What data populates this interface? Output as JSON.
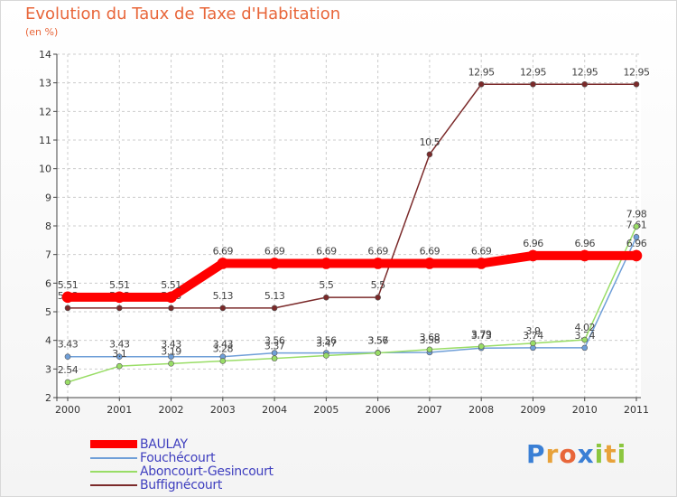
{
  "title": "Evolution du Taux de Taxe d'Habitation",
  "subtitle": "(en %)",
  "logo": {
    "text": "Proxiti",
    "letters": [
      {
        "ch": "P",
        "color": "#3a7fd5"
      },
      {
        "ch": "r",
        "color": "#e8a23a"
      },
      {
        "ch": "o",
        "color": "#e8663a"
      },
      {
        "ch": "x",
        "color": "#3a7fd5"
      },
      {
        "ch": "i",
        "color": "#8cc63f"
      },
      {
        "ch": "t",
        "color": "#e8a23a"
      },
      {
        "ch": "i",
        "color": "#8cc63f"
      }
    ]
  },
  "chart_data": {
    "type": "line",
    "title": "Evolution du Taux de Taxe d'Habitation",
    "ylabel": "(en %)",
    "xlabel": "",
    "x": [
      "2000",
      "2001",
      "2002",
      "2003",
      "2004",
      "2005",
      "2006",
      "2007",
      "2008",
      "2009",
      "2010",
      "2011"
    ],
    "ylim": [
      2,
      14
    ],
    "yticks": [
      "2",
      "3",
      "4",
      "5",
      "6",
      "7",
      "8",
      "9",
      "10",
      "11",
      "12",
      "13",
      "14"
    ],
    "grid": true,
    "legend": "bottom-left",
    "series": [
      {
        "name": "Buffignécourt",
        "color": "#7b2a2a",
        "values": [
          5.13,
          5.13,
          5.13,
          5.13,
          5.13,
          5.5,
          5.5,
          10.5,
          12.95,
          12.95,
          12.95,
          12.95
        ],
        "labels": [
          "5.13",
          "5.13",
          "5.13",
          "5.13",
          "5.13",
          "5.5",
          "5.5",
          "10.5",
          "12.95",
          "12.95",
          "12.95",
          "12.95"
        ]
      },
      {
        "name": "Fouchécourt",
        "color": "#6f9fd8",
        "values": [
          3.43,
          3.43,
          3.43,
          3.43,
          3.56,
          3.56,
          3.57,
          3.58,
          3.73,
          3.74,
          3.74,
          7.61
        ],
        "labels": [
          "3.43",
          "3.43",
          "3.43",
          "3.43",
          "3.56",
          "3.56",
          "3.57",
          "3.58",
          "3.73",
          "3.74",
          "3.74",
          "7.61"
        ]
      },
      {
        "name": "Aboncourt-Gesincourt",
        "color": "#99dd66",
        "values": [
          2.54,
          3.1,
          3.19,
          3.28,
          3.37,
          3.47,
          3.56,
          3.68,
          3.79,
          3.9,
          4.02,
          7.98
        ],
        "labels": [
          "2.54",
          "3.1",
          "3.19",
          "3.28",
          "3.37",
          "3.47",
          "3.56",
          "3.68",
          "3.79",
          "3.9",
          "4.02",
          "7.98"
        ]
      },
      {
        "name": "BAULAY",
        "color": "#ff0000",
        "values": [
          5.51,
          5.51,
          5.51,
          6.69,
          6.69,
          6.69,
          6.69,
          6.69,
          6.69,
          6.96,
          6.96,
          6.96
        ],
        "labels": [
          "5.51",
          "5.51",
          "5.51",
          "6.69",
          "6.69",
          "6.69",
          "6.69",
          "6.69",
          "6.69",
          "6.96",
          "6.96",
          "6.96"
        ]
      }
    ],
    "legend_order": [
      "BAULAY",
      "Fouchécourt",
      "Aboncourt-Gesincourt",
      "Buffignécourt"
    ]
  }
}
